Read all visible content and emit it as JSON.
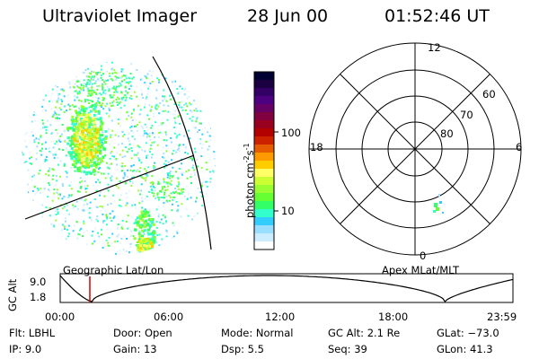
{
  "header": {
    "instrument": "Ultraviolet Imager",
    "date": "28 Jun 00",
    "time": "01:52:46 UT"
  },
  "geo_panel": {
    "label": "Geographic Lat/Lon"
  },
  "colorbar": {
    "unit_label": "photon cm",
    "unit_sup1": "-2",
    "unit_mid": "s",
    "unit_sup2": "-1",
    "ticks": [
      "100",
      "10"
    ],
    "colors": [
      "#000033",
      "#1a0040",
      "#330066",
      "#4d0080",
      "#660066",
      "#800040",
      "#990020",
      "#b30000",
      "#cc2200",
      "#e65c00",
      "#ff9900",
      "#ffcc00",
      "#ffff66",
      "#ccff33",
      "#99ff33",
      "#66ff33",
      "#33ff66",
      "#33ffcc",
      "#33ccff",
      "#99ddff",
      "#ccecff",
      "#ffffff"
    ]
  },
  "polar_panel": {
    "label": "Apex MLat/MLT",
    "mlt_labels": {
      "top": "12",
      "left": "18",
      "right": "6",
      "bottom": "0"
    },
    "lat_labels": [
      "60",
      "70",
      "80"
    ]
  },
  "altitude_plot": {
    "ylabel": "GC Alt",
    "yticks": [
      "9.0",
      "1.8"
    ],
    "xticks": [
      "00:00",
      "06:00",
      "12:00",
      "18:00",
      "23:59"
    ],
    "marker_time": "01:52"
  },
  "info": {
    "flt": "Flt: LBHL",
    "ip": "IP:  9.0",
    "door": "Door: Open",
    "gain": "Gain: 13",
    "mode": "Mode: Normal",
    "dsp": "Dsp:     5.5",
    "gc_alt": "GC Alt: 2.1 Re",
    "seq": "Seq: 39",
    "glat": "GLat: −73.0",
    "glon": "GLon:  41.3"
  }
}
